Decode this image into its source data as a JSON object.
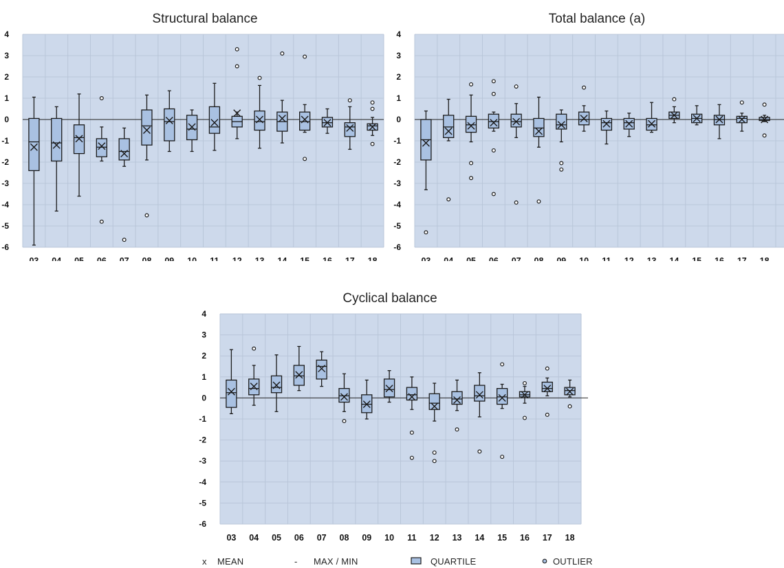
{
  "legend": {
    "mean_symbol": "x",
    "mean_label": "MEAN",
    "maxmin_symbol": "-",
    "maxmin_label": "MAX / MIN",
    "quartile_label": "QUARTILE",
    "outlier_label": "OUTLIER"
  },
  "colors": {
    "plot_bg": "#cdd9eb",
    "grid": "#b9c6d9",
    "box_fill": "#a9c1e2",
    "stroke": "#1a1a1a"
  },
  "chart_data": [
    {
      "type": "boxplot",
      "title": "Structural balance",
      "ylim": [
        -6,
        4
      ],
      "yticks": [
        4,
        3,
        2,
        1,
        0,
        -1,
        -2,
        -3,
        -4,
        -5,
        -6
      ],
      "categories": [
        "03",
        "04",
        "05",
        "06",
        "07",
        "08",
        "09",
        "10",
        "11",
        "12",
        "13",
        "14",
        "15",
        "16",
        "17",
        "18"
      ],
      "boxes": [
        {
          "min": -5.9,
          "q1": -2.4,
          "median": -1.05,
          "q3": 0.05,
          "max": 1.05,
          "mean": -1.3,
          "outliers": []
        },
        {
          "min": -4.3,
          "q1": -1.95,
          "median": -1.1,
          "q3": 0.05,
          "max": 0.6,
          "mean": -1.2,
          "outliers": []
        },
        {
          "min": -3.6,
          "q1": -1.6,
          "median": -0.85,
          "q3": -0.25,
          "max": 1.2,
          "mean": -0.9,
          "outliers": []
        },
        {
          "min": -1.95,
          "q1": -1.75,
          "median": -1.3,
          "q3": -0.9,
          "max": -0.35,
          "mean": -1.25,
          "outliers": [
            1.0,
            -4.8
          ]
        },
        {
          "min": -2.2,
          "q1": -1.9,
          "median": -1.5,
          "q3": -0.9,
          "max": -0.4,
          "mean": -1.6,
          "outliers": [
            -5.65
          ]
        },
        {
          "min": -1.9,
          "q1": -1.2,
          "median": -0.3,
          "q3": 0.45,
          "max": 1.15,
          "mean": -0.5,
          "outliers": [
            -4.5
          ]
        },
        {
          "min": -1.5,
          "q1": -1.0,
          "median": -0.1,
          "q3": 0.5,
          "max": 1.35,
          "mean": -0.05,
          "outliers": []
        },
        {
          "min": -1.5,
          "q1": -0.95,
          "median": -0.45,
          "q3": 0.2,
          "max": 0.45,
          "mean": -0.35,
          "outliers": []
        },
        {
          "min": -1.45,
          "q1": -0.65,
          "median": -0.35,
          "q3": 0.6,
          "max": 1.7,
          "mean": -0.15,
          "outliers": []
        },
        {
          "min": -0.9,
          "q1": -0.35,
          "median": -0.1,
          "q3": 0.15,
          "max": 0.35,
          "mean": 0.3,
          "outliers": [
            3.3,
            2.5
          ]
        },
        {
          "min": -1.35,
          "q1": -0.5,
          "median": -0.1,
          "q3": 0.4,
          "max": 1.6,
          "mean": 0.0,
          "outliers": [
            1.95
          ]
        },
        {
          "min": -1.1,
          "q1": -0.55,
          "median": -0.1,
          "q3": 0.35,
          "max": 0.9,
          "mean": 0.05,
          "outliers": [
            3.1
          ]
        },
        {
          "min": -0.6,
          "q1": -0.5,
          "median": -0.1,
          "q3": 0.35,
          "max": 0.7,
          "mean": 0.0,
          "outliers": [
            2.95,
            -1.85
          ]
        },
        {
          "min": -0.65,
          "q1": -0.35,
          "median": -0.15,
          "q3": 0.1,
          "max": 0.5,
          "mean": -0.15,
          "outliers": []
        },
        {
          "min": -1.4,
          "q1": -0.8,
          "median": -0.35,
          "q3": -0.15,
          "max": 0.6,
          "mean": -0.4,
          "outliers": [
            0.9
          ]
        },
        {
          "min": -0.75,
          "q1": -0.5,
          "median": -0.3,
          "q3": -0.2,
          "max": 0.1,
          "mean": -0.35,
          "outliers": [
            0.8,
            0.5,
            -1.15
          ]
        }
      ]
    },
    {
      "type": "boxplot",
      "title": "Total balance (a)",
      "ylim": [
        -6,
        4
      ],
      "yticks": [
        4,
        3,
        2,
        1,
        0,
        -1,
        -2,
        -3,
        -4,
        -5,
        -6
      ],
      "categories": [
        "03",
        "04",
        "05",
        "06",
        "07",
        "08",
        "09",
        "10",
        "11",
        "12",
        "13",
        "14",
        "15",
        "16",
        "17",
        "18"
      ],
      "boxes": [
        {
          "min": -3.3,
          "q1": -1.9,
          "median": -0.95,
          "q3": 0.0,
          "max": 0.4,
          "mean": -1.1,
          "outliers": [
            -5.3
          ]
        },
        {
          "min": -1.0,
          "q1": -0.85,
          "median": -0.35,
          "q3": 0.2,
          "max": 0.95,
          "mean": -0.55,
          "outliers": [
            -3.75
          ]
        },
        {
          "min": -1.05,
          "q1": -0.6,
          "median": -0.25,
          "q3": 0.15,
          "max": 1.15,
          "mean": -0.3,
          "outliers": [
            1.65,
            -2.05,
            -2.75
          ]
        },
        {
          "min": -0.55,
          "q1": -0.4,
          "median": -0.1,
          "q3": 0.25,
          "max": 0.35,
          "mean": -0.15,
          "outliers": [
            1.8,
            1.2,
            -1.45,
            -3.5
          ]
        },
        {
          "min": -0.85,
          "q1": -0.35,
          "median": -0.1,
          "q3": 0.25,
          "max": 0.75,
          "mean": -0.1,
          "outliers": [
            1.55,
            -3.9
          ]
        },
        {
          "min": -1.3,
          "q1": -0.8,
          "median": -0.4,
          "q3": 0.05,
          "max": 1.05,
          "mean": -0.55,
          "outliers": [
            -3.85
          ]
        },
        {
          "min": -1.05,
          "q1": -0.45,
          "median": -0.25,
          "q3": 0.25,
          "max": 0.45,
          "mean": -0.25,
          "outliers": [
            -2.05,
            -2.35
          ]
        },
        {
          "min": -0.55,
          "q1": -0.25,
          "median": 0.0,
          "q3": 0.35,
          "max": 0.65,
          "mean": 0.05,
          "outliers": [
            1.5
          ]
        },
        {
          "min": -1.15,
          "q1": -0.5,
          "median": -0.15,
          "q3": 0.05,
          "max": 0.4,
          "mean": -0.2,
          "outliers": []
        },
        {
          "min": -0.8,
          "q1": -0.45,
          "median": -0.15,
          "q3": 0.05,
          "max": 0.3,
          "mean": -0.2,
          "outliers": []
        },
        {
          "min": -0.6,
          "q1": -0.5,
          "median": -0.25,
          "q3": 0.05,
          "max": 0.8,
          "mean": -0.2,
          "outliers": []
        },
        {
          "min": -0.15,
          "q1": 0.05,
          "median": 0.2,
          "q3": 0.35,
          "max": 0.6,
          "mean": 0.2,
          "outliers": [
            0.95
          ]
        },
        {
          "min": -0.25,
          "q1": -0.15,
          "median": 0.05,
          "q3": 0.25,
          "max": 0.65,
          "mean": 0.05,
          "outliers": []
        },
        {
          "min": -0.9,
          "q1": -0.25,
          "median": 0.0,
          "q3": 0.2,
          "max": 0.7,
          "mean": 0.0,
          "outliers": []
        },
        {
          "min": -0.55,
          "q1": -0.15,
          "median": 0.05,
          "q3": 0.15,
          "max": 0.3,
          "mean": 0.0,
          "outliers": [
            0.8
          ]
        },
        {
          "min": -0.1,
          "q1": -0.05,
          "median": 0.0,
          "q3": 0.1,
          "max": 0.2,
          "mean": 0.0,
          "outliers": [
            0.7,
            -0.75
          ]
        }
      ]
    },
    {
      "type": "boxplot",
      "title": "Cyclical balance",
      "ylim": [
        -6,
        4
      ],
      "yticks": [
        4,
        3,
        2,
        1,
        0,
        -1,
        -2,
        -3,
        -4,
        -5,
        -6
      ],
      "categories": [
        "03",
        "04",
        "05",
        "06",
        "07",
        "08",
        "09",
        "10",
        "11",
        "12",
        "13",
        "14",
        "15",
        "16",
        "17",
        "18"
      ],
      "boxes": [
        {
          "min": -0.75,
          "q1": -0.45,
          "median": 0.25,
          "q3": 0.85,
          "max": 2.3,
          "mean": 0.3,
          "outliers": []
        },
        {
          "min": -0.35,
          "q1": 0.15,
          "median": 0.45,
          "q3": 0.9,
          "max": 1.55,
          "mean": 0.55,
          "outliers": [
            2.35
          ]
        },
        {
          "min": -0.65,
          "q1": 0.25,
          "median": 0.5,
          "q3": 1.05,
          "max": 2.05,
          "mean": 0.6,
          "outliers": []
        },
        {
          "min": 0.35,
          "q1": 0.6,
          "median": 1.05,
          "q3": 1.55,
          "max": 2.45,
          "mean": 1.1,
          "outliers": []
        },
        {
          "min": 0.55,
          "q1": 0.9,
          "median": 1.5,
          "q3": 1.8,
          "max": 2.2,
          "mean": 1.4,
          "outliers": []
        },
        {
          "min": -0.65,
          "q1": -0.2,
          "median": 0.1,
          "q3": 0.45,
          "max": 1.15,
          "mean": 0.05,
          "outliers": [
            -1.1
          ]
        },
        {
          "min": -1.0,
          "q1": -0.7,
          "median": -0.3,
          "q3": 0.15,
          "max": 0.85,
          "mean": -0.3,
          "outliers": []
        },
        {
          "min": -0.2,
          "q1": 0.05,
          "median": 0.4,
          "q3": 0.9,
          "max": 1.3,
          "mean": 0.45,
          "outliers": []
        },
        {
          "min": -0.55,
          "q1": -0.1,
          "median": 0.15,
          "q3": 0.5,
          "max": 1.0,
          "mean": 0.05,
          "outliers": [
            -1.65,
            -2.85
          ]
        },
        {
          "min": -1.1,
          "q1": -0.55,
          "median": -0.25,
          "q3": 0.2,
          "max": 0.7,
          "mean": -0.4,
          "outliers": [
            -2.6,
            -3.0
          ]
        },
        {
          "min": -0.6,
          "q1": -0.3,
          "median": -0.05,
          "q3": 0.3,
          "max": 0.85,
          "mean": -0.1,
          "outliers": [
            -1.5
          ]
        },
        {
          "min": -0.9,
          "q1": -0.15,
          "median": 0.1,
          "q3": 0.6,
          "max": 1.2,
          "mean": 0.15,
          "outliers": [
            -2.55
          ]
        },
        {
          "min": -0.5,
          "q1": -0.3,
          "median": 0.05,
          "q3": 0.45,
          "max": 0.65,
          "mean": 0.0,
          "outliers": [
            1.6,
            -2.8
          ]
        },
        {
          "min": -0.25,
          "q1": 0.05,
          "median": 0.15,
          "q3": 0.3,
          "max": 0.55,
          "mean": 0.15,
          "outliers": [
            0.7,
            -0.95
          ]
        },
        {
          "min": 0.1,
          "q1": 0.3,
          "median": 0.45,
          "q3": 0.75,
          "max": 0.95,
          "mean": 0.45,
          "outliers": [
            1.4,
            -0.8
          ]
        },
        {
          "min": 0.05,
          "q1": 0.15,
          "median": 0.35,
          "q3": 0.5,
          "max": 0.85,
          "mean": 0.3,
          "outliers": [
            -0.4
          ]
        }
      ]
    }
  ]
}
